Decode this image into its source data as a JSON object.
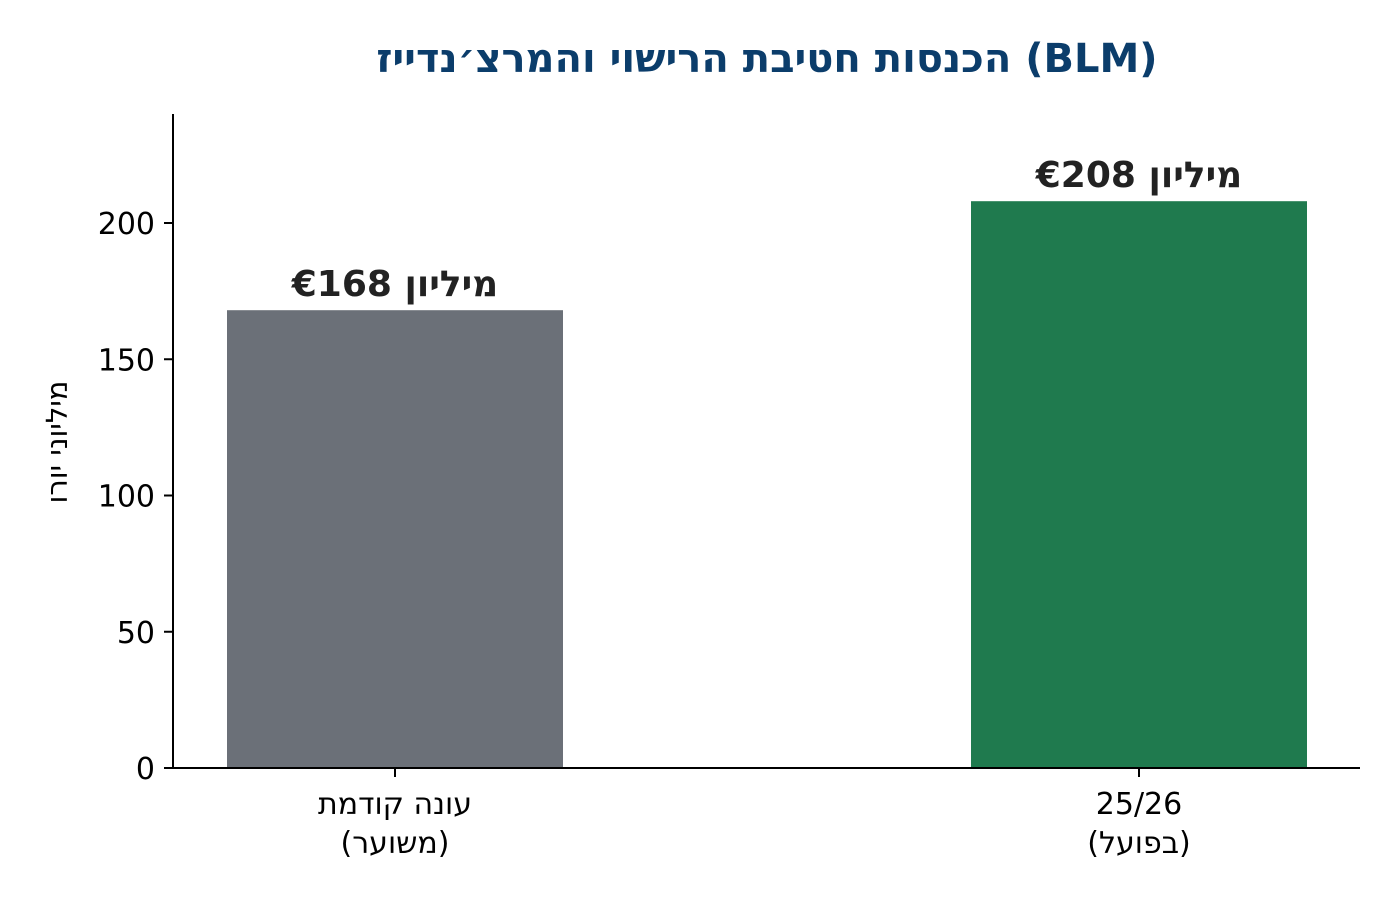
{
  "chart_data": {
    "type": "bar",
    "title": "הכנסות חטיבת הרישוי והמרצ׳נדייז (BLM)",
    "ylabel": "מיליוני יורו",
    "xlabel": "",
    "categories": [
      [
        "עונה קודמת",
        "(משוער)"
      ],
      [
        "25/26",
        "(בפועל)"
      ]
    ],
    "values": [
      168,
      208
    ],
    "data_labels": [
      "€168 מיליון",
      "€208 מיליון"
    ],
    "bar_colors": [
      "#6b7078",
      "#1f7a4e"
    ],
    "ylim": [
      0,
      240
    ],
    "yticks": [
      0,
      50,
      100,
      150,
      200
    ],
    "grid": false,
    "legend": "none"
  },
  "colors": {
    "title": "#0b3d6b",
    "label": "#222222",
    "axis": "#000000"
  }
}
